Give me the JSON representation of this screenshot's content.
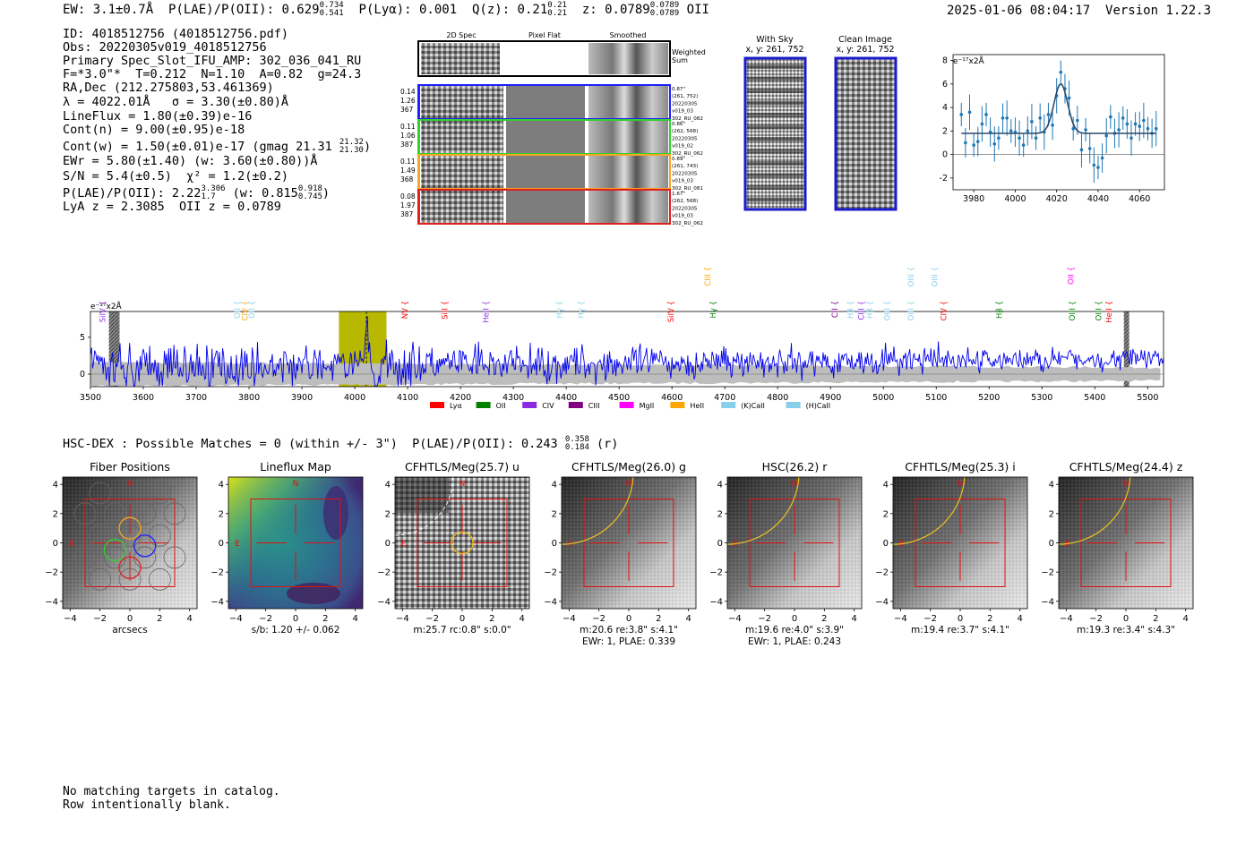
{
  "header": {
    "ew": "EW: 3.1±0.7Å",
    "plae": "P(LAE)/P(OII): 0.629",
    "plae_hi": "0.734",
    "plae_lo": "0.541",
    "plya": "P(Lyα): 0.001",
    "qz": "Q(z): 0.21",
    "qz_hi": "0.21",
    "qz_lo": "0.21",
    "z": "z: 0.0789",
    "z_hi": "0.0789",
    "z_lo": "0.0789",
    "z_line": "OII",
    "timestamp": "2025-01-06 08:04:17",
    "version": "Version 1.22.3"
  },
  "info": {
    "id": "ID: 4018512756 (4018512756.pdf)",
    "obs": "Obs: 20220305v019_4018512756",
    "primary": "Primary Spec_Slot_IFU_AMP: 302_036_041_RU",
    "fit": "F=*3.0\"*  T=0.212  N=1.10  A=0.82  g=24.3",
    "radec": "RA,Dec (212.275803,53.461369)",
    "lambda": "λ = 4022.01Å   σ = 3.30(±0.80)Å",
    "lineflux": "LineFlux = 1.80(±0.39)e-16",
    "contn": "Cont(n) = 9.00(±0.95)e-18",
    "contw": "Cont(w) = 1.50(±0.01)e-17 (gmag 21.31",
    "contw_hi": "21.32",
    "contw_lo": "21.30",
    "contw_end": ")",
    "ewr": "EWr = 5.80(±1.40) (w: 3.60(±0.80))Å",
    "sn": "S/N = 5.4(±0.5)  χ² = 1.2(±0.2)",
    "plae": "P(LAE)/P(OII): 2.22",
    "plae_hi": "3.306",
    "plae_lo": "1.7",
    "plae_w": " (w: 0.815",
    "plae_w_hi": "0.918",
    "plae_w_lo": "0.745",
    "plae_w_end": ")",
    "lyaz": "LyA z = 2.3085  OII z = 0.0789"
  },
  "cutouts": {
    "headers": [
      "2D Spec",
      "Pixel Flat",
      "Smoothed"
    ],
    "weighted_label": "Weighted\nSum",
    "rows": [
      {
        "left": [
          "0.14",
          "1.26",
          "367"
        ],
        "right": [
          "0.87\"",
          "(261, 752)",
          "20220305",
          "v019_03",
          "302_RU_082"
        ],
        "color": "#1f1fff"
      },
      {
        "left": [
          "0.11",
          "1.06",
          "387"
        ],
        "right": [
          "0.86\"",
          "(262, 568)",
          "20220305",
          "v019_02",
          "302_RU_062"
        ],
        "color": "#30d030"
      },
      {
        "left": [
          "0.11",
          "1.49",
          "368"
        ],
        "right": [
          "0.89\"",
          "(261, 743)",
          "20220305",
          "v019_03",
          "302_RU_081"
        ],
        "color": "#f5a623"
      },
      {
        "left": [
          "0.08",
          "1.97",
          "387"
        ],
        "right": [
          "1.67\"",
          "(262, 568)",
          "20220305",
          "v019_03",
          "302_RU_062"
        ],
        "color": "#e02020"
      }
    ]
  },
  "sky": {
    "with_sky": "With Sky",
    "with_sky_xy": "x, y: 261, 752",
    "clean": "Clean Image",
    "clean_xy": "x, y: 261, 752"
  },
  "line_fit": {
    "ylabel": "e⁻¹⁷x2Å",
    "xticks": [
      3980,
      4000,
      4020,
      4040,
      4060
    ],
    "yticks": [
      -2,
      0,
      2,
      4,
      6,
      8
    ],
    "xlim": [
      3970,
      4072
    ],
    "ylim": [
      -3,
      8.5
    ],
    "color": "#1f77b4"
  },
  "spectrum": {
    "ylabel": "e⁻¹⁷x2Å",
    "xticks": [
      3500,
      3600,
      3700,
      3800,
      3900,
      4000,
      4100,
      4200,
      4300,
      4400,
      4500,
      4600,
      4700,
      4800,
      4900,
      5000,
      5100,
      5200,
      5300,
      5400,
      5500
    ],
    "yticks": [
      0,
      5
    ],
    "xlim": [
      3500,
      5530
    ],
    "ylim": [
      -1.7,
      8.5
    ],
    "line_color": "#0000ee",
    "legend": [
      {
        "label": "Lyα",
        "color": "#ff0000"
      },
      {
        "label": "OII",
        "color": "#008000"
      },
      {
        "label": "CIV",
        "color": "#8a2be2"
      },
      {
        "label": "CIII",
        "color": "#800080"
      },
      {
        "label": "MgII",
        "color": "#ff00ff"
      },
      {
        "label": "HeII",
        "color": "#ffa500"
      },
      {
        "label": "(K)CaII",
        "color": "#87ceeb"
      },
      {
        "label": "(H)CaII",
        "color": "#87ceeb"
      }
    ],
    "line_marks": [
      {
        "label": "SiIV",
        "wave": 3528,
        "level": 1,
        "color": "#8a2be2"
      },
      {
        "label": "OII",
        "wave": 3783,
        "level": 1,
        "color": "#87ceeb"
      },
      {
        "label": "CIV",
        "wave": 3797,
        "level": 1,
        "color": "#ffa500"
      },
      {
        "label": "OII",
        "wave": 3810,
        "level": 1,
        "color": "#87ceeb"
      },
      {
        "label": "NV",
        "wave": 4100,
        "level": 1,
        "color": "#ff0000"
      },
      {
        "label": "SiII",
        "wave": 4175,
        "level": 1,
        "color": "#ff0000"
      },
      {
        "label": "HeII",
        "wave": 4253,
        "level": 1,
        "color": "#8a2be2"
      },
      {
        "label": "Hγ",
        "wave": 4392,
        "level": 1,
        "color": "#87ceeb"
      },
      {
        "label": "Hγ",
        "wave": 4433,
        "level": 1,
        "color": "#87ceeb"
      },
      {
        "label": "SiIV",
        "wave": 4603,
        "level": 1,
        "color": "#ff0000"
      },
      {
        "label": "CIII",
        "wave": 4673,
        "level": 0,
        "color": "#ffa500"
      },
      {
        "label": "Hγ",
        "wave": 4683,
        "level": 1,
        "color": "#008000"
      },
      {
        "label": "CII",
        "wave": 4913,
        "level": 1,
        "color": "#800080"
      },
      {
        "label": "Hβ",
        "wave": 4943,
        "level": 1,
        "color": "#87ceeb"
      },
      {
        "label": "CIII",
        "wave": 4963,
        "level": 1,
        "color": "#8a2be2"
      },
      {
        "label": "Hβ",
        "wave": 4979,
        "level": 1,
        "color": "#87ceeb"
      },
      {
        "label": "OIII",
        "wave": 5012,
        "level": 1,
        "color": "#87ceeb"
      },
      {
        "label": "OIII",
        "wave": 5057,
        "level": 0,
        "color": "#87ceeb"
      },
      {
        "label": "OIII",
        "wave": 5057,
        "level": 1,
        "color": "#87ceeb"
      },
      {
        "label": "OIII",
        "wave": 5102,
        "level": 0,
        "color": "#87ceeb"
      },
      {
        "label": "CIV",
        "wave": 5119,
        "level": 1,
        "color": "#ff0000"
      },
      {
        "label": "Hβ",
        "wave": 5224,
        "level": 1,
        "color": "#008000"
      },
      {
        "label": "OII",
        "wave": 5360,
        "level": 0,
        "color": "#ff00ff"
      },
      {
        "label": "OIII",
        "wave": 5362,
        "level": 1,
        "color": "#008000"
      },
      {
        "label": "OIII",
        "wave": 5412,
        "level": 1,
        "color": "#008000"
      },
      {
        "label": "HeII",
        "wave": 5432,
        "level": 1,
        "color": "#ff0000"
      }
    ]
  },
  "hsc": {
    "label": "HSC-DEX : Possible Matches = 0 (within +/- 3\")  P(LAE)/P(OII): 0.243",
    "hi": "0.358",
    "lo": "0.184",
    "band": " (r)"
  },
  "panels": [
    {
      "title": "Fiber Positions",
      "sub1": "arcsecs",
      "sub2": "",
      "type": "fiber"
    },
    {
      "title": "Lineflux Map",
      "sub1": "s/b: 1.20 +/- 0.062",
      "sub2": "",
      "type": "flux"
    },
    {
      "title": "CFHTLS/Meg(25.7) u",
      "sub1": "m:25.7 rc:0.8\"  s:0.0\"",
      "sub2": "",
      "type": "u"
    },
    {
      "title": "CFHTLS/Meg(26.0) g",
      "sub1": "m:20.6  re:3.8\"  s:4.1\"",
      "sub2": "EWr: 1, PLAE: 0.339",
      "type": "g"
    },
    {
      "title": "HSC(26.2) r",
      "sub1": "m:19.6  re:4.0\"  s:3.9\"",
      "sub2": "EWr: 1, PLAE: 0.243",
      "type": "r"
    },
    {
      "title": "CFHTLS/Meg(25.3) i",
      "sub1": "m:19.4  re:3.7\"  s:4.1\"",
      "sub2": "",
      "type": "i"
    },
    {
      "title": "CFHTLS/Meg(24.4) z",
      "sub1": "m:19.3  re:3.4\"  s:4.3\"",
      "sub2": "",
      "type": "z"
    }
  ],
  "panel_axes": {
    "ticks": [
      -4,
      -2,
      0,
      2,
      4
    ],
    "n_label": "N",
    "e_label": "E"
  },
  "footer": {
    "line1": "No matching targets in catalog.",
    "line2": "Row intentionally blank."
  },
  "chart_data": [
    {
      "type": "scatter",
      "title": "",
      "xlabel": "",
      "ylabel": "e⁻¹⁷x2Å",
      "xlim": [
        3970,
        4072
      ],
      "ylim": [
        -3,
        8.5
      ],
      "x": [
        3974,
        3976,
        3978,
        3980,
        3982,
        3984,
        3986,
        3988,
        3990,
        3992,
        3994,
        3996,
        3998,
        4000,
        4002,
        4004,
        4006,
        4008,
        4010,
        4012,
        4014,
        4016,
        4018,
        4020,
        4022,
        4024,
        4026,
        4028,
        4030,
        4032,
        4034,
        4036,
        4038,
        4040,
        4042,
        4044,
        4046,
        4048,
        4050,
        4052,
        4054,
        4056,
        4058,
        4060,
        4062,
        4064,
        4066,
        4068
      ],
      "y": [
        3.4,
        1.0,
        3.6,
        0.8,
        1.1,
        2.6,
        3.4,
        1.9,
        0.9,
        1.4,
        3.1,
        3.1,
        2.0,
        1.9,
        1.4,
        0.8,
        2.0,
        2.8,
        1.4,
        3.1,
        1.9,
        3.4,
        2.5,
        5.0,
        7.0,
        5.6,
        4.8,
        2.2,
        2.9,
        0.4,
        2.1,
        0.5,
        -0.9,
        -1.1,
        -0.3,
        1.6,
        3.2,
        1.8,
        2.1,
        3.1,
        2.6,
        1.4,
        2.6,
        2.4,
        2.9,
        2.2,
        1.8,
        2.2
      ],
      "model": {
        "center": 4022.01,
        "sigma": 3.3,
        "continuum": 1.8,
        "amplitude": 4.2
      }
    },
    {
      "type": "line",
      "title": "",
      "xlabel": "",
      "ylabel": "e⁻¹⁷x2Å",
      "xlim": [
        3500,
        5530
      ],
      "ylim": [
        -1.7,
        8.5
      ],
      "x_start": 3500,
      "x_step": 2,
      "highlight_band": [
        3970,
        4060
      ],
      "masked_bands": [
        [
          3535,
          3555
        ],
        [
          5455,
          5465
        ]
      ]
    }
  ]
}
